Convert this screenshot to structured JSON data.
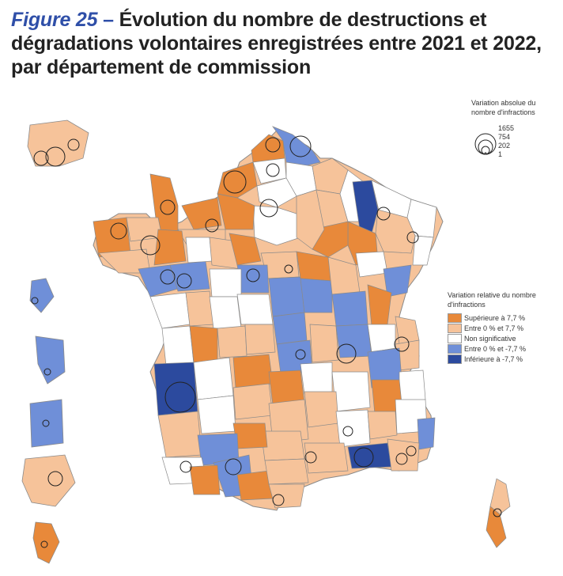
{
  "title": {
    "figure_label": "Figure 25",
    "dash": " – ",
    "text": "Évolution du nombre de destructions et dégradations volontaires enregistrées entre 2021 et 2022, par département de commission"
  },
  "legend_absolute": {
    "title": "Variation absolue du nombre d'infractions",
    "values": [
      "1655",
      "754",
      "202",
      "1"
    ]
  },
  "legend_relative": {
    "title": "Variation relative du nombre d'infractions",
    "items": [
      {
        "label": "Supérieure à 7,7 %",
        "color": "#e8893a"
      },
      {
        "label": "Entre 0 % et 7,7 %",
        "color": "#f6c39a"
      },
      {
        "label": "Non significative",
        "color": "#ffffff"
      },
      {
        "label": "Entre 0 % et -7,7 %",
        "color": "#6f8fd8"
      },
      {
        "label": "Inférieure à -7,7 %",
        "color": "#2c4a9e"
      }
    ]
  },
  "colors": {
    "strong_up": "#e8893a",
    "up": "#f6c39a",
    "ns": "#ffffff",
    "down": "#6f8fd8",
    "strong_down": "#2c4a9e",
    "border": "#8a8a8a"
  }
}
